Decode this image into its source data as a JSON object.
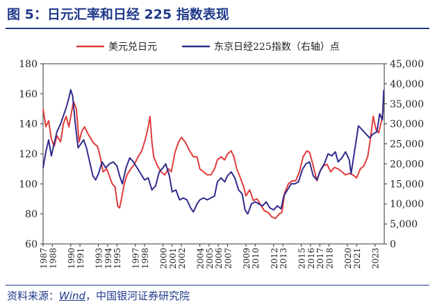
{
  "header": {
    "title": "图 5：日元汇率和日经 225 指数表现"
  },
  "footer": {
    "source_prefix": "资料来源：",
    "source_wind": "Wind",
    "source_suffix": "，中国银河证券研究院"
  },
  "colors": {
    "usdjpy": "#e03a3a",
    "nikkei": "#2e2a8c",
    "accent": "#1f3a8a",
    "axis": "#333333"
  },
  "chart_data": {
    "type": "line",
    "x_ticks": [
      "1987",
      "1988",
      "1990",
      "1991",
      "1993",
      "1994",
      "1995",
      "1997",
      "1998",
      "2000",
      "2001",
      "2002",
      "2004",
      "2005",
      "2006",
      "2007",
      "2009",
      "2010",
      "2012",
      "2013",
      "2015",
      "2016",
      "2017",
      "2018",
      "2020",
      "2021",
      "2023"
    ],
    "xlim": [
      1987,
      2024
    ],
    "left_axis": {
      "ticks": [
        "60",
        "80",
        "100",
        "120",
        "140",
        "160",
        "180"
      ],
      "ylim": [
        60,
        180
      ]
    },
    "right_axis": {
      "ticks": [
        "0",
        "5,000",
        "10,000",
        "15,000",
        "20,000",
        "25,000",
        "30,000",
        "35,000",
        "40,000",
        "45,000"
      ],
      "ylim": [
        0,
        45000
      ]
    },
    "series": [
      {
        "name": "美元兑日元",
        "axis": "left",
        "x": [
          1987.0,
          1987.3,
          1987.6,
          1987.9,
          1988.2,
          1988.5,
          1988.9,
          1989.2,
          1989.5,
          1989.8,
          1990.1,
          1990.3,
          1990.6,
          1990.9,
          1991.2,
          1991.5,
          1991.9,
          1992.2,
          1992.5,
          1992.9,
          1993.2,
          1993.5,
          1993.9,
          1994.2,
          1994.5,
          1994.8,
          1995.1,
          1995.3,
          1995.5,
          1995.8,
          1996.1,
          1996.5,
          1996.9,
          1997.3,
          1997.7,
          1998.1,
          1998.4,
          1998.6,
          1998.8,
          1999.0,
          1999.4,
          1999.8,
          2000.2,
          2000.6,
          2000.9,
          2001.3,
          2001.7,
          2002.0,
          2002.4,
          2002.9,
          2003.3,
          2003.7,
          2004.0,
          2004.4,
          2004.8,
          2005.2,
          2005.6,
          2005.9,
          2006.3,
          2006.7,
          2007.0,
          2007.4,
          2007.7,
          2008.0,
          2008.4,
          2008.8,
          2009.0,
          2009.4,
          2009.8,
          2010.2,
          2010.6,
          2011.0,
          2011.4,
          2011.8,
          2012.2,
          2012.6,
          2012.9,
          2013.2,
          2013.6,
          2014.0,
          2014.4,
          2014.8,
          2015.2,
          2015.6,
          2015.9,
          2016.3,
          2016.7,
          2017.0,
          2017.4,
          2017.8,
          2018.2,
          2018.6,
          2019.0,
          2019.4,
          2019.8,
          2020.2,
          2020.6,
          2021.0,
          2021.4,
          2021.8,
          2022.2,
          2022.5,
          2022.8,
          2023.1,
          2023.4,
          2023.7,
          2023.9
        ],
        "y": [
          150,
          138,
          142,
          130,
          125,
          132,
          128,
          140,
          145,
          138,
          148,
          155,
          150,
          128,
          135,
          138,
          133,
          130,
          127,
          125,
          118,
          108,
          110,
          105,
          100,
          98,
          85,
          84,
          90,
          100,
          106,
          110,
          113,
          118,
          122,
          130,
          138,
          145,
          128,
          118,
          112,
          108,
          106,
          110,
          108,
          121,
          128,
          131,
          128,
          122,
          118,
          118,
          110,
          108,
          106,
          106,
          110,
          116,
          118,
          116,
          120,
          122,
          118,
          110,
          104,
          97,
          92,
          96,
          89,
          90,
          86,
          82,
          81,
          78,
          77,
          80,
          81,
          94,
          100,
          102,
          102,
          108,
          118,
          122,
          121,
          112,
          102,
          108,
          112,
          113,
          108,
          111,
          110,
          108,
          106,
          107,
          106,
          104,
          110,
          112,
          118,
          130,
          145,
          136,
          134,
          142,
          150
        ]
      },
      {
        "name": "东京日经225指数（右轴）点",
        "axis": "right",
        "x": [
          1987.0,
          1987.3,
          1987.6,
          1987.9,
          1988.2,
          1988.5,
          1988.9,
          1989.2,
          1989.5,
          1989.8,
          1990.0,
          1990.2,
          1990.5,
          1990.8,
          1991.1,
          1991.4,
          1991.7,
          1992.0,
          1992.4,
          1992.7,
          1993.0,
          1993.4,
          1993.8,
          1994.2,
          1994.6,
          1995.0,
          1995.3,
          1995.6,
          1996.0,
          1996.4,
          1996.8,
          1997.2,
          1997.6,
          1998.0,
          1998.4,
          1998.8,
          1999.2,
          1999.6,
          2000.0,
          2000.3,
          2000.7,
          2001.0,
          2001.4,
          2001.8,
          2002.2,
          2002.6,
          2003.0,
          2003.3,
          2003.7,
          2004.0,
          2004.4,
          2004.8,
          2005.2,
          2005.6,
          2005.9,
          2006.3,
          2006.7,
          2007.0,
          2007.4,
          2007.8,
          2008.2,
          2008.6,
          2008.9,
          2009.2,
          2009.6,
          2010.0,
          2010.4,
          2010.8,
          2011.2,
          2011.6,
          2012.0,
          2012.4,
          2012.8,
          2013.1,
          2013.5,
          2013.9,
          2014.3,
          2014.7,
          2015.1,
          2015.5,
          2015.9,
          2016.3,
          2016.7,
          2017.1,
          2017.5,
          2017.9,
          2018.3,
          2018.7,
          2019.0,
          2019.4,
          2019.8,
          2020.2,
          2020.4,
          2020.8,
          2021.2,
          2021.6,
          2022.0,
          2022.4,
          2022.8,
          2023.2,
          2023.5,
          2023.8,
          2023.95
        ],
        "y": [
          19000,
          23000,
          26000,
          22000,
          25000,
          28000,
          30000,
          32000,
          34000,
          36500,
          38500,
          37000,
          30000,
          24000,
          25000,
          26000,
          24000,
          21000,
          17000,
          16000,
          17500,
          20500,
          19000,
          20000,
          20500,
          19500,
          17000,
          15000,
          19000,
          21500,
          20500,
          19000,
          17500,
          16000,
          16500,
          13500,
          14500,
          18000,
          19000,
          20000,
          17000,
          13000,
          13500,
          11000,
          11500,
          11000,
          9000,
          8000,
          10000,
          11000,
          11500,
          11000,
          11500,
          12000,
          15500,
          16500,
          15500,
          17000,
          18000,
          16500,
          13500,
          12500,
          8500,
          7500,
          10000,
          10500,
          10000,
          9500,
          10500,
          9000,
          8500,
          9500,
          8800,
          12000,
          13500,
          15000,
          15000,
          15500,
          18500,
          20000,
          20500,
          17000,
          16000,
          18500,
          20000,
          22500,
          22000,
          23000,
          20500,
          21500,
          23000,
          21000,
          17500,
          23500,
          29500,
          28500,
          27500,
          26500,
          27500,
          28000,
          32500,
          31000,
          38500
        ]
      }
    ]
  }
}
